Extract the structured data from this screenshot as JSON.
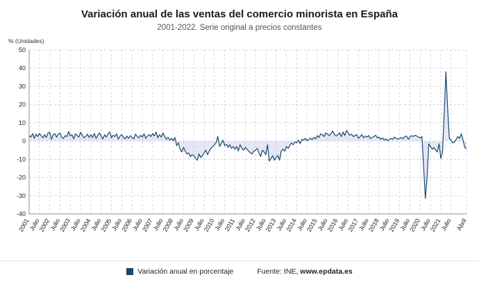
{
  "header": {
    "title": "Variación anual de las ventas del comercio minorista en España",
    "subtitle": "2001-2022. Serie original a precios constantes"
  },
  "chart": {
    "unit_label": "% (Unidades)"
  },
  "footer": {
    "legend_label": "Variación anual en porcentaje",
    "source_prefix": "Fuente: INE, ",
    "source_site": "www.epdata.es"
  },
  "colors": {
    "line": "#17486b",
    "area": "#8b93d6",
    "area_opacity": 0.22,
    "legend_square": "#17486b",
    "grid": "#c7cedd",
    "axis": "#8f8f8f",
    "tick_text": "#222222"
  },
  "chart_data": {
    "type": "line",
    "title": "Variación anual de las ventas del comercio minorista en España",
    "subtitle": "2001-2022. Serie original a precios constantes",
    "ylabel": "% (Unidades)",
    "ylim": [
      -40,
      50
    ],
    "y_ticks": [
      50,
      40,
      30,
      20,
      10,
      0,
      -10,
      -20,
      -30,
      -40
    ],
    "grid": "dashed",
    "legend_position": "bottom",
    "x_start": "2001-01",
    "x_end": "2022-04",
    "x_tick_labels": [
      "2001",
      "Julio",
      "2002",
      "Julio",
      "2003",
      "Julio",
      "2004",
      "Julio",
      "2005",
      "Julio",
      "2006",
      "Julio",
      "2007",
      "Julio",
      "2008",
      "Julio",
      "2009",
      "Julio",
      "2010",
      "Julio",
      "2011",
      "Julio",
      "2012",
      "Julio",
      "2013",
      "Julio",
      "2014",
      "Julio",
      "2015",
      "Julio",
      "2016",
      "Julio",
      "2017",
      "Julio",
      "2018",
      "Julio",
      "2019",
      "Julio",
      "2020",
      "Julio",
      "2021",
      "Julio",
      "Abril"
    ],
    "tick_every_months": 6,
    "series": [
      {
        "name": "Variación anual en porcentaje",
        "values": [
          3.0,
          2.2,
          4.1,
          1.5,
          3.8,
          2.5,
          4.2,
          3.0,
          1.8,
          3.5,
          2.0,
          4.5,
          4.8,
          1.0,
          3.5,
          4.0,
          2.2,
          3.8,
          4.5,
          2.0,
          1.5,
          3.0,
          2.5,
          5.2,
          2.8,
          3.5,
          1.2,
          4.0,
          3.0,
          2.2,
          4.8,
          3.2,
          1.8,
          2.5,
          3.8,
          2.0,
          3.5,
          2.0,
          4.2,
          1.5,
          3.0,
          4.5,
          2.8,
          1.2,
          3.5,
          2.2,
          4.0,
          5.0,
          1.8,
          3.2,
          2.5,
          4.0,
          1.0,
          2.8,
          3.5,
          2.0,
          1.2,
          2.8,
          1.5,
          3.0,
          2.0,
          1.2,
          3.8,
          2.5,
          1.8,
          3.2,
          2.2,
          4.0,
          1.5,
          2.8,
          3.5,
          2.5,
          4.2,
          2.8,
          5.0,
          1.8,
          3.5,
          2.2,
          4.5,
          2.5,
          1.0,
          2.0,
          0.5,
          1.5,
          0.2,
          2.0,
          -2.5,
          -1.0,
          -4.5,
          -6.0,
          -3.5,
          -5.5,
          -7.0,
          -6.5,
          -8.5,
          -7.5,
          -8.0,
          -9.5,
          -10.5,
          -7.0,
          -9.0,
          -8.0,
          -6.5,
          -5.0,
          -7.5,
          -5.5,
          -4.0,
          -3.0,
          -2.0,
          -1.0,
          2.5,
          -3.0,
          -1.5,
          0.5,
          -2.5,
          -1.8,
          -3.5,
          -2.0,
          -4.0,
          -3.0,
          -4.5,
          -3.0,
          -5.5,
          -2.0,
          -4.0,
          -5.0,
          -3.5,
          -4.5,
          -5.5,
          -6.5,
          -7.0,
          -5.5,
          -5.0,
          -4.0,
          -6.5,
          -8.5,
          -5.0,
          -6.0,
          -7.5,
          -2.0,
          -11.0,
          -9.5,
          -8.0,
          -10.5,
          -9.0,
          -8.0,
          -10.5,
          -5.5,
          -4.5,
          -5.5,
          -3.0,
          -4.0,
          -2.5,
          -1.0,
          -2.0,
          -0.5,
          -1.0,
          0.5,
          -1.5,
          1.0,
          0.5,
          1.5,
          0.2,
          1.0,
          1.5,
          0.8,
          2.0,
          1.2,
          3.0,
          2.0,
          4.0,
          3.5,
          2.5,
          4.5,
          3.8,
          3.0,
          4.2,
          5.5,
          3.5,
          2.8,
          3.5,
          4.5,
          2.5,
          5.0,
          3.0,
          5.8,
          4.5,
          3.2,
          3.8,
          2.5,
          3.0,
          3.5,
          1.5,
          2.5,
          3.5,
          1.8,
          2.8,
          2.2,
          3.0,
          1.5,
          2.0,
          2.5,
          3.2,
          1.8,
          2.2,
          1.0,
          1.8,
          0.5,
          1.2,
          0.2,
          0.8,
          1.5,
          1.0,
          2.2,
          1.5,
          1.0,
          1.5,
          2.0,
          1.2,
          2.5,
          2.8,
          1.0,
          2.2,
          3.0,
          2.5,
          3.2,
          2.8,
          2.2,
          1.8,
          2.5,
          -14.0,
          -31.5,
          -20.0,
          -1.5,
          -3.0,
          -4.5,
          -3.5,
          -5.0,
          -6.0,
          -1.5,
          -9.5,
          -6.0,
          15.0,
          38.0,
          18.0,
          1.5,
          0.5,
          -1.0,
          -0.5,
          1.0,
          2.5,
          1.5,
          4.0,
          0.5,
          -3.5,
          -4.2
        ]
      }
    ]
  }
}
